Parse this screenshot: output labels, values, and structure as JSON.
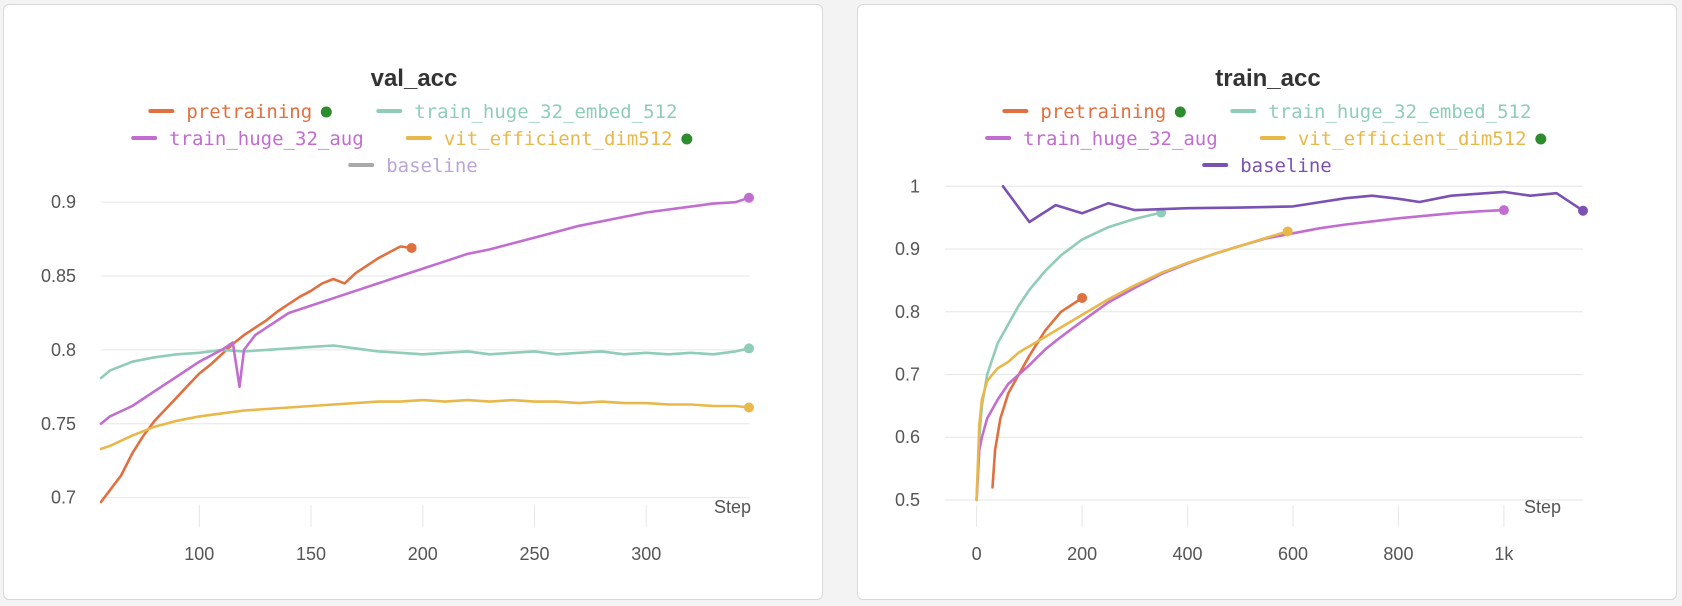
{
  "chart_data": [
    {
      "type": "line",
      "title": "val_acc",
      "xlabel": "Step",
      "ylabel": "",
      "xlim": [
        56,
        346
      ],
      "ylim": [
        0.695,
        0.915
      ],
      "x_ticks": [
        100,
        150,
        200,
        250,
        300
      ],
      "x_tick_labels": [
        "100",
        "150",
        "200",
        "250",
        "300"
      ],
      "y_ticks": [
        0.7,
        0.75,
        0.8,
        0.85,
        0.9
      ],
      "y_tick_labels": [
        "0.7",
        "0.75",
        "0.8",
        "0.85",
        "0.9"
      ],
      "grid": true,
      "legend_placement": "top-center",
      "legend": [
        {
          "name": "pretraining",
          "color": "#e07040",
          "dot": true
        },
        {
          "name": "train_huge_32_embed_512",
          "color": "#8fcdb8",
          "dot": false
        },
        {
          "name": "train_huge_32_aug",
          "color": "#c26dd0",
          "dot": false
        },
        {
          "name": "vit_efficient_dim512",
          "color": "#e8b84a",
          "dot": true
        },
        {
          "name": "baseline",
          "color": "#a9a9a9",
          "text_color": "#b8a6d8",
          "dot": false
        }
      ],
      "series": [
        {
          "name": "pretraining",
          "color": "#e07040",
          "x": [
            56,
            60,
            65,
            70,
            75,
            80,
            85,
            90,
            95,
            100,
            105,
            110,
            115,
            120,
            125,
            130,
            135,
            140,
            145,
            150,
            155,
            160,
            165,
            170,
            175,
            180,
            185,
            190,
            195
          ],
          "y": [
            0.697,
            0.705,
            0.715,
            0.73,
            0.742,
            0.752,
            0.76,
            0.768,
            0.776,
            0.784,
            0.79,
            0.797,
            0.804,
            0.81,
            0.815,
            0.82,
            0.826,
            0.831,
            0.836,
            0.84,
            0.845,
            0.848,
            0.845,
            0.852,
            0.857,
            0.862,
            0.866,
            0.87,
            0.869
          ]
        },
        {
          "name": "train_huge_32_embed_512",
          "color": "#8fcdb8",
          "x": [
            56,
            60,
            70,
            80,
            90,
            100,
            110,
            120,
            130,
            140,
            150,
            160,
            170,
            180,
            190,
            200,
            210,
            220,
            230,
            240,
            250,
            260,
            270,
            280,
            290,
            300,
            310,
            320,
            330,
            340,
            346
          ],
          "y": [
            0.781,
            0.786,
            0.792,
            0.795,
            0.797,
            0.798,
            0.8,
            0.799,
            0.8,
            0.801,
            0.802,
            0.803,
            0.801,
            0.799,
            0.798,
            0.797,
            0.798,
            0.799,
            0.797,
            0.798,
            0.799,
            0.797,
            0.798,
            0.799,
            0.797,
            0.798,
            0.797,
            0.798,
            0.797,
            0.799,
            0.801
          ]
        },
        {
          "name": "train_huge_32_aug",
          "color": "#c26dd0",
          "x": [
            56,
            60,
            70,
            80,
            90,
            100,
            110,
            115,
            118,
            120,
            125,
            130,
            140,
            150,
            160,
            170,
            180,
            190,
            200,
            210,
            220,
            230,
            240,
            250,
            260,
            270,
            280,
            290,
            300,
            310,
            320,
            330,
            340,
            346
          ],
          "y": [
            0.75,
            0.755,
            0.762,
            0.772,
            0.782,
            0.792,
            0.8,
            0.805,
            0.775,
            0.8,
            0.81,
            0.815,
            0.825,
            0.83,
            0.835,
            0.84,
            0.845,
            0.85,
            0.855,
            0.86,
            0.865,
            0.868,
            0.872,
            0.876,
            0.88,
            0.884,
            0.887,
            0.89,
            0.893,
            0.895,
            0.897,
            0.899,
            0.9,
            0.903
          ]
        },
        {
          "name": "vit_efficient_dim512",
          "color": "#e8b84a",
          "x": [
            56,
            60,
            70,
            80,
            90,
            100,
            110,
            120,
            130,
            140,
            150,
            160,
            170,
            180,
            190,
            200,
            210,
            220,
            230,
            240,
            250,
            260,
            270,
            280,
            290,
            300,
            310,
            320,
            330,
            340,
            346
          ],
          "y": [
            0.733,
            0.735,
            0.742,
            0.748,
            0.752,
            0.755,
            0.757,
            0.759,
            0.76,
            0.761,
            0.762,
            0.763,
            0.764,
            0.765,
            0.765,
            0.766,
            0.765,
            0.766,
            0.765,
            0.766,
            0.765,
            0.765,
            0.764,
            0.765,
            0.764,
            0.764,
            0.763,
            0.763,
            0.762,
            0.762,
            0.761
          ]
        }
      ]
    },
    {
      "type": "line",
      "title": "train_acc",
      "xlabel": "Step",
      "ylabel": "",
      "xlim": [
        -60,
        1150
      ],
      "ylim": [
        0.492,
        1.01
      ],
      "x_ticks": [
        0,
        200,
        400,
        600,
        800,
        1000
      ],
      "x_tick_labels": [
        "0",
        "200",
        "400",
        "600",
        "800",
        "1k"
      ],
      "y_ticks": [
        0.5,
        0.6,
        0.7,
        0.8,
        0.9,
        1.0
      ],
      "y_tick_labels": [
        "0.5",
        "0.6",
        "0.7",
        "0.8",
        "0.9",
        "1"
      ],
      "grid": true,
      "legend_placement": "top-center",
      "legend": [
        {
          "name": "pretraining",
          "color": "#e07040",
          "dot": true
        },
        {
          "name": "train_huge_32_embed_512",
          "color": "#8fcdb8",
          "dot": false
        },
        {
          "name": "train_huge_32_aug",
          "color": "#c26dd0",
          "dot": false
        },
        {
          "name": "vit_efficient_dim512",
          "color": "#e8b84a",
          "dot": true
        },
        {
          "name": "baseline",
          "color": "#7a52b3",
          "text_color": "#7a52b3",
          "dot": false
        }
      ],
      "series": [
        {
          "name": "pretraining",
          "color": "#e07040",
          "x": [
            30,
            35,
            45,
            60,
            80,
            100,
            130,
            160,
            200
          ],
          "y": [
            0.52,
            0.58,
            0.63,
            0.67,
            0.7,
            0.73,
            0.77,
            0.8,
            0.822
          ]
        },
        {
          "name": "train_huge_32_embed_512",
          "color": "#8fcdb8",
          "x": [
            0,
            5,
            10,
            20,
            40,
            60,
            80,
            100,
            130,
            160,
            200,
            250,
            300,
            350
          ],
          "y": [
            0.5,
            0.6,
            0.65,
            0.7,
            0.75,
            0.78,
            0.81,
            0.835,
            0.865,
            0.89,
            0.915,
            0.935,
            0.948,
            0.958
          ]
        },
        {
          "name": "train_huge_32_aug",
          "color": "#c26dd0",
          "x": [
            0,
            5,
            10,
            20,
            40,
            60,
            80,
            100,
            130,
            160,
            200,
            250,
            300,
            350,
            400,
            450,
            500,
            550,
            600,
            650,
            700,
            750,
            800,
            850,
            900,
            950,
            1000
          ],
          "y": [
            0.5,
            0.58,
            0.6,
            0.63,
            0.66,
            0.685,
            0.7,
            0.715,
            0.74,
            0.76,
            0.785,
            0.815,
            0.838,
            0.86,
            0.877,
            0.892,
            0.905,
            0.917,
            0.925,
            0.933,
            0.939,
            0.944,
            0.949,
            0.953,
            0.957,
            0.96,
            0.962
          ]
        },
        {
          "name": "vit_efficient_dim512",
          "color": "#e8b84a",
          "x": [
            0,
            5,
            10,
            20,
            40,
            60,
            80,
            100,
            130,
            160,
            200,
            250,
            300,
            350,
            400,
            450,
            500,
            550,
            590
          ],
          "y": [
            0.5,
            0.62,
            0.66,
            0.69,
            0.71,
            0.72,
            0.735,
            0.745,
            0.76,
            0.775,
            0.795,
            0.82,
            0.842,
            0.862,
            0.878,
            0.892,
            0.905,
            0.918,
            0.928
          ]
        },
        {
          "name": "baseline",
          "color": "#7a52b3",
          "x": [
            50,
            100,
            150,
            200,
            250,
            300,
            400,
            500,
            600,
            700,
            750,
            800,
            840,
            900,
            950,
            1000,
            1050,
            1100,
            1150
          ],
          "y": [
            1.0,
            0.943,
            0.97,
            0.957,
            0.973,
            0.962,
            0.965,
            0.966,
            0.968,
            0.981,
            0.985,
            0.98,
            0.975,
            0.985,
            0.988,
            0.991,
            0.985,
            0.989,
            0.961
          ]
        }
      ]
    }
  ]
}
